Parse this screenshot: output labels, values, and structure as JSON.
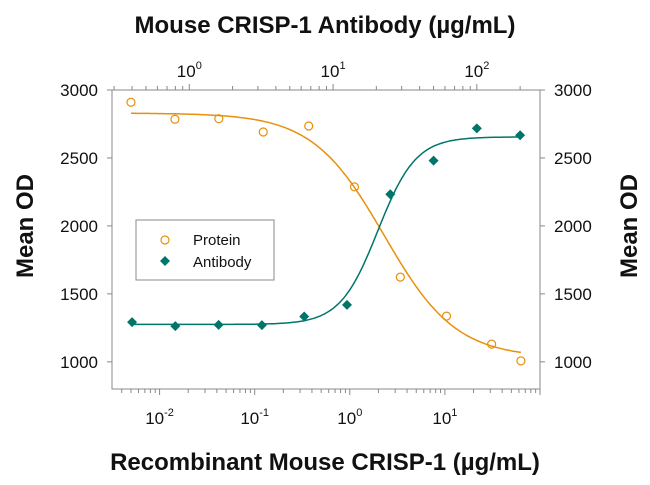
{
  "chart_data": {
    "type": "scatter",
    "top_title": "Mouse CRISP-1 Antibody (µg/mL)",
    "xlabel": "Recombinant Mouse CRISP-1 (µg/mL)",
    "ylabel_left": "Mean OD",
    "ylabel_right": "Mean OD",
    "ylim": [
      800,
      3000
    ],
    "y_ticks": [
      "1000",
      "1500",
      "2000",
      "2500",
      "3000"
    ],
    "x_bottom": {
      "scale": "log",
      "range": [
        0.00316,
        100
      ],
      "ticks": [
        {
          "base": "10",
          "exp": "-2",
          "value": 0.01
        },
        {
          "base": "10",
          "exp": "-1",
          "value": 0.1
        },
        {
          "base": "10",
          "exp": "0",
          "value": 1
        },
        {
          "base": "10",
          "exp": "1",
          "value": 10
        }
      ]
    },
    "x_top": {
      "scale": "log",
      "range": [
        0.29,
        275
      ],
      "ticks": [
        {
          "base": "10",
          "exp": "0",
          "value": 1
        },
        {
          "base": "10",
          "exp": "1",
          "value": 10
        },
        {
          "base": "10",
          "exp": "2",
          "value": 100
        }
      ]
    },
    "grid": false,
    "legend": {
      "position": "center-left",
      "entries": [
        "Protein",
        "Antibody"
      ]
    },
    "series": [
      {
        "name": "Protein",
        "axis": "bottom",
        "marker": "open-circle",
        "color": "#E8900A",
        "x": [
          0.005,
          0.0145,
          0.042,
          0.123,
          0.37,
          1.12,
          3.4,
          10.4,
          31,
          63
        ],
        "y": [
          2910,
          2785,
          2789,
          2691,
          2735,
          2287,
          1623,
          1336,
          1130,
          1007
        ],
        "fit": {
          "top": 2830,
          "bottom": 1030,
          "ec50": 2.3,
          "hill": 1.15,
          "direction": "decreasing"
        }
      },
      {
        "name": "Antibody",
        "axis": "top",
        "marker": "filled-diamond",
        "color": "#00756A",
        "x": [
          0.4,
          0.8,
          1.6,
          3.2,
          6.3,
          12.5,
          25,
          50,
          100,
          200
        ],
        "y": [
          1292,
          1263,
          1272,
          1270,
          1333,
          1419,
          2233,
          2480,
          2718,
          2667
        ],
        "fit": {
          "top": 2655,
          "bottom": 1275,
          "ec50": 20.5,
          "hill": 3.3,
          "direction": "increasing"
        }
      }
    ]
  }
}
